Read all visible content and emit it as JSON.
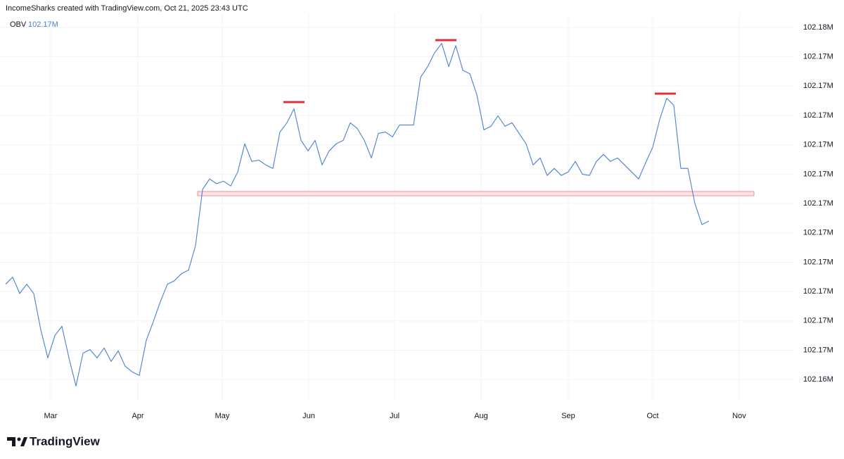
{
  "header": "IncomeSharks created with TradingView.com, Oct 21, 2025 23:43 UTC",
  "brand": "TradingView",
  "chart_data": {
    "type": "line",
    "legend_name": "OBV",
    "legend_value": "102.17M",
    "color": "#4a7fd4",
    "grid": true,
    "xlim": [
      -0.8,
      109.2
    ],
    "xticks": [
      {
        "value": 6.4,
        "label": "Mar"
      },
      {
        "value": 18.8,
        "label": "Apr"
      },
      {
        "value": 30.8,
        "label": "May"
      },
      {
        "value": 43.1,
        "label": "Jun"
      },
      {
        "value": 55.3,
        "label": "Jul"
      },
      {
        "value": 67.6,
        "label": "Aug"
      },
      {
        "value": 80,
        "label": "Sep"
      },
      {
        "value": 92,
        "label": "Oct"
      },
      {
        "value": 104.3,
        "label": "Nov"
      }
    ],
    "ylim": [
      102.16408,
      102.17666
    ],
    "yticks": [
      {
        "value": 102.1758,
        "label": "102.18M"
      },
      {
        "value": 102.17488,
        "label": "102.17M"
      },
      {
        "value": 102.17396,
        "label": "102.17M"
      },
      {
        "value": 102.17304,
        "label": "102.17M"
      },
      {
        "value": 102.17212,
        "label": "102.17M"
      },
      {
        "value": 102.1712,
        "label": "102.17M"
      },
      {
        "value": 102.17028,
        "label": "102.17M"
      },
      {
        "value": 102.16936,
        "label": "102.17M"
      },
      {
        "value": 102.16844,
        "label": "102.17M"
      },
      {
        "value": 102.16752,
        "label": "102.17M"
      },
      {
        "value": 102.1666,
        "label": "102.17M"
      },
      {
        "value": 102.16568,
        "label": "102.17M"
      },
      {
        "value": 102.16476,
        "label": "102.16M"
      }
    ],
    "series": [
      {
        "name": "OBV",
        "color": "#4a7fd4",
        "values": [
          102.16775,
          102.16797,
          102.16746,
          102.16775,
          102.16746,
          102.16632,
          102.16544,
          102.16614,
          102.16643,
          102.16544,
          102.16456,
          102.16559,
          102.1657,
          102.16544,
          102.16575,
          102.16533,
          102.16566,
          102.16518,
          102.165,
          102.16489,
          102.16599,
          102.16658,
          102.1672,
          102.16775,
          102.16786,
          102.16808,
          102.16819,
          102.16896,
          102.17072,
          102.17105,
          102.1709,
          102.17098,
          102.17083,
          102.17127,
          102.17215,
          102.1716,
          102.17164,
          102.17149,
          102.17138,
          102.17252,
          102.17281,
          102.17325,
          102.17226,
          102.17193,
          102.17226,
          102.17149,
          102.17193,
          102.17215,
          102.17226,
          102.17281,
          102.17263,
          102.17226,
          102.17171,
          102.17248,
          102.17252,
          102.17237,
          102.17274,
          102.17274,
          102.17274,
          102.17424,
          102.17457,
          102.17501,
          102.1753,
          102.17457,
          102.17523,
          102.17446,
          102.17435,
          102.17369,
          102.17259,
          102.1727,
          102.17303,
          102.1727,
          102.17281,
          102.17248,
          102.17215,
          102.17149,
          102.17171,
          102.17116,
          102.17138,
          102.17116,
          102.17127,
          102.1716,
          102.1712,
          102.17116,
          102.1716,
          102.17182,
          102.1716,
          102.17171,
          102.17149,
          102.17127,
          102.17105,
          102.17156,
          102.17204,
          102.17292,
          102.17358,
          102.17336,
          102.17138,
          102.17138,
          102.17028,
          102.16962,
          102.16973
        ]
      }
    ]
  }
}
